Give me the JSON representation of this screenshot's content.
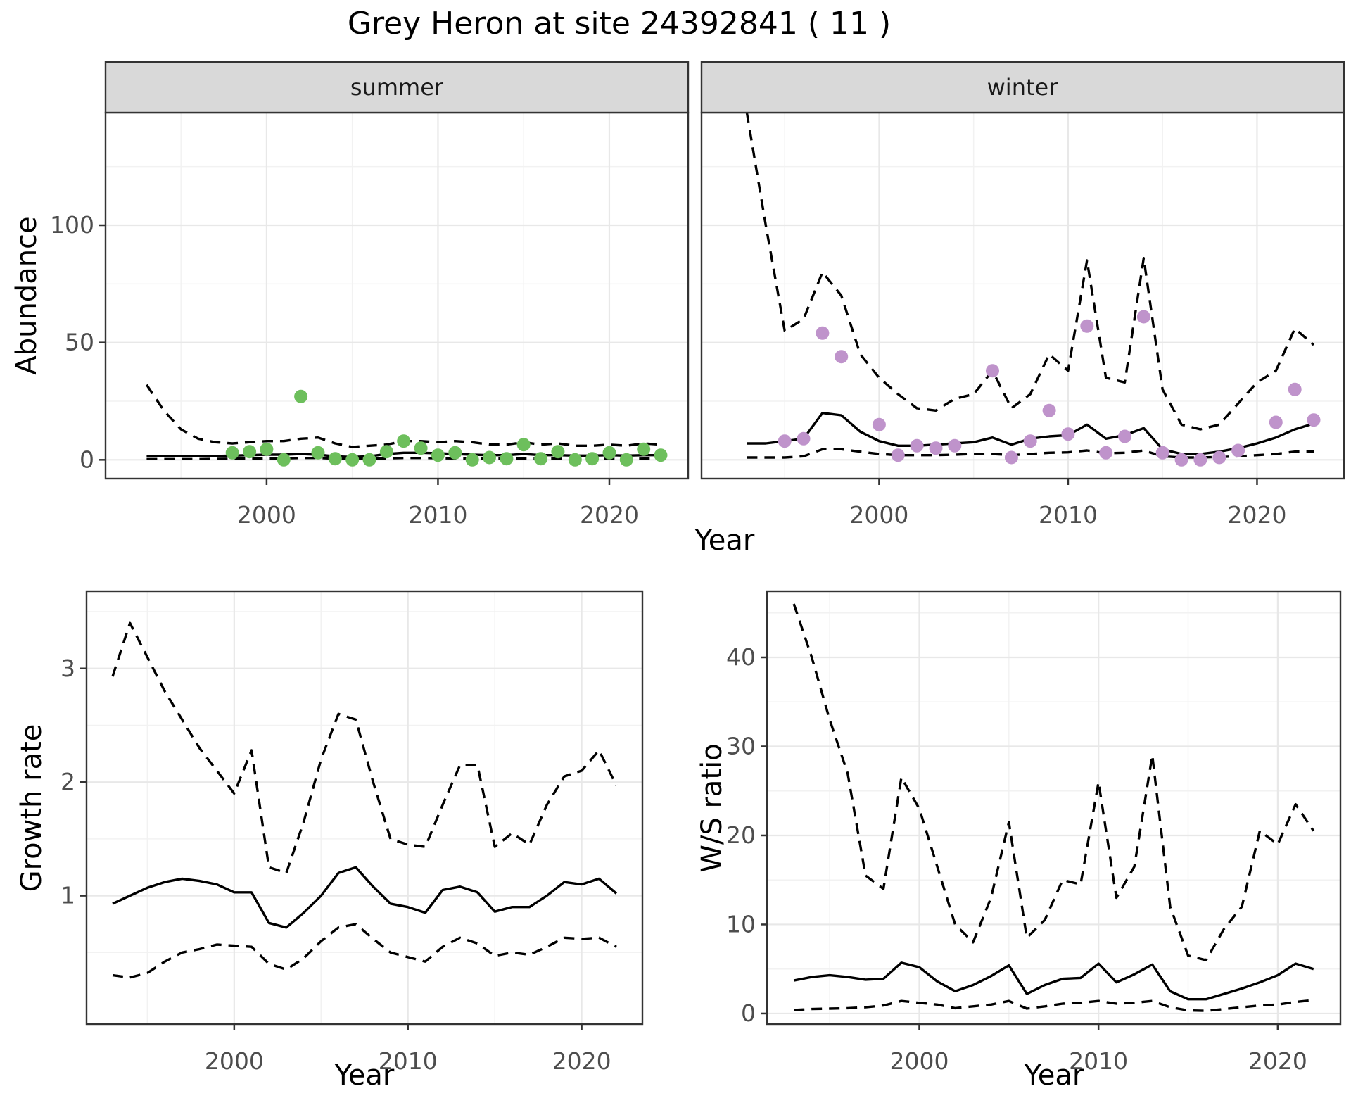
{
  "title": "Grey Heron at site 24392841 ( 11 )",
  "labels": {
    "y_top": "Abundance",
    "x_top": "Year",
    "y_bottom_left": "Growth rate",
    "x_bottom_left": "Year",
    "y_bottom_right": "W/S ratio",
    "x_bottom_right": "Year"
  },
  "facets": {
    "summer": "summer",
    "winter": "winter"
  },
  "colors": {
    "observed_summer": "#6dbf5c",
    "observed_winter": "#bf93cb",
    "line": "#000000",
    "strip_bg": "#d9d9d9",
    "panel_border": "#333333",
    "grid_major": "#e8e8e8",
    "grid_minor": "#f2f2f2",
    "tick_text": "#4d4d4d",
    "background": "#ffffff"
  },
  "chart_data": [
    {
      "type": "line",
      "facet_label": "summer",
      "xlabel": "Year",
      "ylabel": "Abundance",
      "xlim": [
        1990.6,
        2024.6
      ],
      "ylim": [
        -8,
        148
      ],
      "x_ticks": [
        2000,
        2010,
        2020
      ],
      "x_minor": [
        1995,
        2005,
        2015
      ],
      "y_ticks": [
        0,
        50,
        100
      ],
      "y_minor": [
        25,
        75,
        125
      ],
      "grid": true,
      "legend": "none",
      "x": [
        1993,
        1994,
        1995,
        1996,
        1997,
        1998,
        1999,
        2000,
        2001,
        2002,
        2003,
        2004,
        2005,
        2006,
        2007,
        2008,
        2009,
        2010,
        2011,
        2012,
        2013,
        2014,
        2015,
        2016,
        2017,
        2018,
        2019,
        2020,
        2021,
        2022,
        2023
      ],
      "series": [
        {
          "name": "upper_ci",
          "style": "dashed",
          "values": [
            32,
            21,
            13,
            9,
            7.5,
            7,
            7.5,
            8,
            8,
            9,
            9.5,
            7,
            5.5,
            6,
            6.5,
            8,
            8,
            7.5,
            8,
            7.5,
            6.5,
            6.5,
            7.5,
            6.5,
            7,
            6,
            6,
            6.5,
            6,
            7,
            6.5
          ]
        },
        {
          "name": "lower_ci",
          "style": "dashed",
          "values": [
            0.3,
            0.3,
            0.3,
            0.3,
            0.4,
            0.5,
            0.5,
            0.6,
            0.6,
            0.8,
            0.8,
            0.5,
            0.3,
            0.4,
            0.6,
            0.8,
            0.8,
            0.7,
            0.6,
            0.6,
            0.5,
            0.5,
            0.6,
            0.5,
            0.5,
            0.4,
            0.4,
            0.5,
            0.4,
            0.5,
            0.5
          ]
        },
        {
          "name": "median",
          "style": "solid",
          "values": [
            1.5,
            1.5,
            1.5,
            1.6,
            1.6,
            1.8,
            2.0,
            2.2,
            2.2,
            2.5,
            2.2,
            1.5,
            1.2,
            1.5,
            2.5,
            3.0,
            3.0,
            2.8,
            2.5,
            2.2,
            2.0,
            2.0,
            2.5,
            2.0,
            2.0,
            1.8,
            1.8,
            2.0,
            1.8,
            2.0,
            2.0
          ]
        }
      ],
      "points": {
        "name": "observed",
        "color_key": "observed_summer",
        "x": [
          1998,
          1999,
          2000,
          2001,
          2002,
          2003,
          2004,
          2005,
          2006,
          2007,
          2008,
          2009,
          2010,
          2011,
          2012,
          2013,
          2014,
          2015,
          2016,
          2017,
          2018,
          2019,
          2020,
          2021,
          2022,
          2023
        ],
        "y": [
          3,
          3.5,
          4.5,
          0,
          27,
          3,
          0.5,
          0,
          0,
          3.5,
          8,
          5,
          2,
          3,
          0,
          1,
          0.5,
          6.5,
          0.5,
          3.5,
          0,
          0.5,
          3,
          0,
          4.5,
          2
        ]
      }
    },
    {
      "type": "line",
      "facet_label": "winter",
      "xlabel": "Year",
      "ylabel": "Abundance",
      "xlim": [
        1990.6,
        2024.6
      ],
      "ylim": [
        -8,
        148
      ],
      "x_ticks": [
        2000,
        2010,
        2020
      ],
      "x_minor": [
        1995,
        2005,
        2015
      ],
      "y_ticks": [
        0,
        50,
        100
      ],
      "y_minor": [
        25,
        75,
        125
      ],
      "grid": true,
      "legend": "none",
      "x": [
        1993,
        1994,
        1995,
        1996,
        1997,
        1998,
        1999,
        2000,
        2001,
        2002,
        2003,
        2004,
        2005,
        2006,
        2007,
        2008,
        2009,
        2010,
        2011,
        2012,
        2013,
        2014,
        2015,
        2016,
        2017,
        2018,
        2019,
        2020,
        2021,
        2022,
        2023
      ],
      "series": [
        {
          "name": "upper_ci",
          "style": "dashed",
          "values": [
            148,
            100,
            55,
            60,
            80,
            70,
            45,
            35,
            28,
            22,
            21,
            26,
            28,
            38,
            22,
            28,
            45,
            38,
            85,
            35,
            33,
            86,
            30,
            15,
            13,
            15,
            24,
            33,
            38,
            56,
            49
          ]
        },
        {
          "name": "lower_ci",
          "style": "dashed",
          "values": [
            1,
            1,
            1,
            1.5,
            4.5,
            4.5,
            3.5,
            2.5,
            2,
            2,
            2,
            2.2,
            2.5,
            2.5,
            2,
            2.5,
            3,
            3.2,
            4,
            2.8,
            3,
            4,
            1.5,
            1,
            1,
            1.2,
            1.5,
            2,
            2.5,
            3.5,
            3.5
          ]
        },
        {
          "name": "median",
          "style": "solid",
          "values": [
            7,
            7,
            8,
            9,
            20,
            19,
            12,
            8,
            6,
            6,
            6.5,
            7,
            7.5,
            9.5,
            6.5,
            9,
            10,
            10.5,
            15,
            9,
            10.5,
            13.5,
            4.5,
            2.5,
            2.5,
            3.5,
            5,
            7,
            9.5,
            13,
            15.5
          ]
        }
      ],
      "points": {
        "name": "observed",
        "color_key": "observed_winter",
        "x": [
          1995,
          1996,
          1997,
          1998,
          2000,
          2001,
          2002,
          2003,
          2004,
          2006,
          2007,
          2008,
          2009,
          2010,
          2011,
          2012,
          2013,
          2014,
          2015,
          2016,
          2017,
          2018,
          2019,
          2021,
          2022,
          2023
        ],
        "y": [
          8,
          9,
          54,
          44,
          15,
          2,
          6,
          5,
          6,
          38,
          1,
          8,
          21,
          11,
          57,
          3,
          10,
          61,
          3,
          0,
          0,
          1,
          4,
          16,
          30,
          17
        ]
      }
    },
    {
      "type": "line",
      "facet_label": "",
      "xlabel": "Year",
      "ylabel": "Growth rate",
      "xlim": [
        1991.5,
        2023.5
      ],
      "ylim": [
        -0.13,
        3.68
      ],
      "x_ticks": [
        2000,
        2010,
        2020
      ],
      "x_minor": [
        1995,
        2005,
        2015
      ],
      "y_ticks": [
        1,
        2,
        3
      ],
      "y_minor": [
        0.5,
        1.5,
        2.5,
        3.5
      ],
      "grid": true,
      "legend": "none",
      "x": [
        1993,
        1994,
        1995,
        1996,
        1997,
        1998,
        1999,
        2000,
        2001,
        2002,
        2003,
        2004,
        2005,
        2006,
        2007,
        2008,
        2009,
        2010,
        2011,
        2012,
        2013,
        2014,
        2015,
        2016,
        2017,
        2018,
        2019,
        2020,
        2021,
        2022
      ],
      "series": [
        {
          "name": "upper_ci",
          "style": "dashed",
          "values": [
            2.93,
            3.4,
            3.1,
            2.8,
            2.55,
            2.3,
            2.1,
            1.9,
            2.28,
            1.25,
            1.2,
            1.65,
            2.2,
            2.6,
            2.55,
            2.0,
            1.5,
            1.45,
            1.43,
            1.8,
            2.15,
            2.15,
            1.43,
            1.55,
            1.45,
            1.8,
            2.05,
            2.1,
            2.28,
            1.97
          ]
        },
        {
          "name": "lower_ci",
          "style": "dashed",
          "values": [
            0.3,
            0.28,
            0.32,
            0.42,
            0.5,
            0.53,
            0.57,
            0.56,
            0.55,
            0.4,
            0.35,
            0.45,
            0.6,
            0.72,
            0.75,
            0.62,
            0.5,
            0.46,
            0.42,
            0.55,
            0.63,
            0.58,
            0.47,
            0.5,
            0.48,
            0.55,
            0.63,
            0.62,
            0.63,
            0.55
          ]
        },
        {
          "name": "median",
          "style": "solid",
          "values": [
            0.93,
            1.0,
            1.07,
            1.12,
            1.15,
            1.13,
            1.1,
            1.03,
            1.03,
            0.76,
            0.72,
            0.85,
            1.0,
            1.2,
            1.25,
            1.08,
            0.93,
            0.9,
            0.85,
            1.05,
            1.08,
            1.03,
            0.86,
            0.9,
            0.9,
            1.0,
            1.12,
            1.1,
            1.15,
            1.02
          ]
        }
      ],
      "points": null
    },
    {
      "type": "line",
      "facet_label": "",
      "xlabel": "Year",
      "ylabel": "W/S ratio",
      "xlim": [
        1991.5,
        2023.5
      ],
      "ylim": [
        -1.19,
        47.43
      ],
      "x_ticks": [
        2000,
        2010,
        2020
      ],
      "x_minor": [
        1995,
        2005,
        2015
      ],
      "y_ticks": [
        0,
        10,
        20,
        30,
        40
      ],
      "y_minor": [
        5,
        15,
        25,
        35,
        45
      ],
      "grid": true,
      "legend": "none",
      "x": [
        1993,
        1994,
        1995,
        1996,
        1997,
        1998,
        1999,
        2000,
        2001,
        2002,
        2003,
        2004,
        2005,
        2006,
        2007,
        2008,
        2009,
        2010,
        2011,
        2012,
        2013,
        2014,
        2015,
        2016,
        2017,
        2018,
        2019,
        2020,
        2021,
        2022
      ],
      "series": [
        {
          "name": "upper_ci",
          "style": "dashed",
          "values": [
            46,
            40,
            33,
            27,
            15.5,
            14,
            26.5,
            23,
            16.5,
            10,
            8,
            13,
            21.5,
            8.5,
            10.5,
            15,
            14.5,
            26,
            13,
            16.5,
            29,
            12,
            6.5,
            6,
            9.5,
            12,
            20.5,
            19,
            23.5,
            20.5
          ]
        },
        {
          "name": "lower_ci",
          "style": "dashed",
          "values": [
            0.4,
            0.5,
            0.55,
            0.6,
            0.7,
            0.9,
            1.4,
            1.2,
            1.0,
            0.6,
            0.8,
            1.0,
            1.4,
            0.55,
            0.8,
            1.1,
            1.2,
            1.4,
            1.1,
            1.2,
            1.4,
            0.7,
            0.35,
            0.3,
            0.5,
            0.7,
            0.9,
            1.0,
            1.3,
            1.5
          ]
        },
        {
          "name": "median",
          "style": "solid",
          "values": [
            3.7,
            4.1,
            4.3,
            4.1,
            3.8,
            3.9,
            5.7,
            5.2,
            3.6,
            2.5,
            3.2,
            4.2,
            5.4,
            2.2,
            3.2,
            3.9,
            4.0,
            5.6,
            3.5,
            4.4,
            5.5,
            2.5,
            1.6,
            1.6,
            2.2,
            2.8,
            3.5,
            4.3,
            5.6,
            5.0
          ]
        }
      ],
      "points": null
    }
  ]
}
